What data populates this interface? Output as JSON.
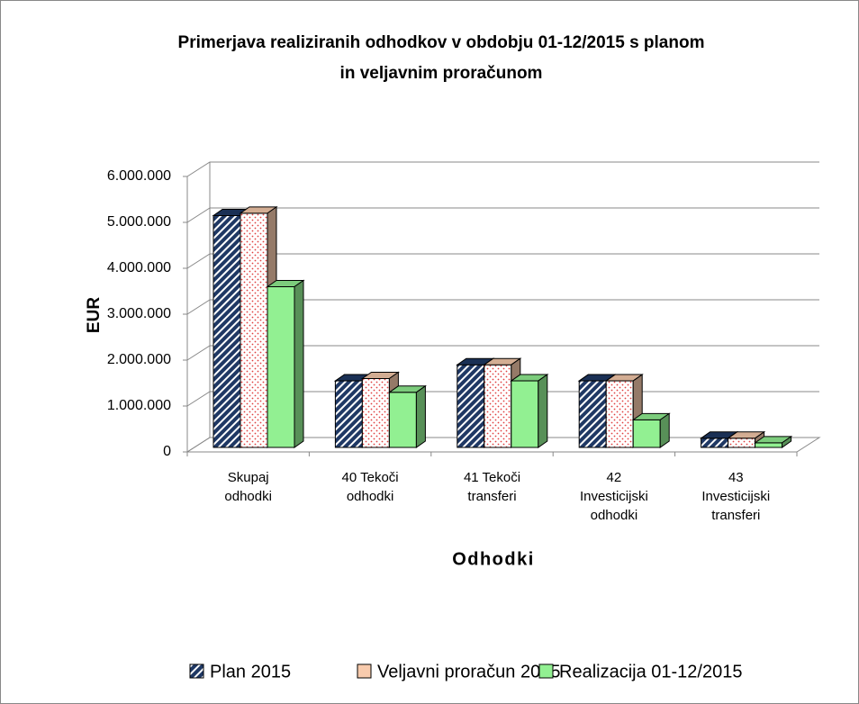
{
  "chart_data": {
    "type": "bar3d",
    "title": [
      "Primerjava realiziranih odhodkov v obdobju 01-12/2015 s planom",
      "in veljavnim proračunom"
    ],
    "xlabel": "Odhodki",
    "ylabel": "EUR",
    "categories": [
      "Skupaj odhodki",
      "40 Tekoči odhodki",
      "41 Tekoči transferi",
      "42 Investicijski odhodki",
      "43 Investicijski transferi"
    ],
    "series": [
      {
        "name": "Plan 2015",
        "color": "#1f3864",
        "values": [
          5050000,
          1450000,
          1800000,
          1450000,
          200000
        ]
      },
      {
        "name": "Veljavni proračun 2015",
        "color": "#f8cbad",
        "values": [
          5100000,
          1500000,
          1800000,
          1450000,
          200000
        ]
      },
      {
        "name": "Realizacija 01-12/2015",
        "color": "#92f092",
        "values": [
          3500000,
          1200000,
          1450000,
          600000,
          100000
        ]
      }
    ],
    "ylim": [
      0,
      6000000
    ],
    "yticks": [
      0,
      {
        "value": 1000000,
        "label": "1.000.000"
      },
      {
        "value": 2000000,
        "label": "2.000.000"
      },
      {
        "value": 3000000,
        "label": "3.000.000"
      },
      {
        "value": 4000000,
        "label": "4.000.000"
      },
      {
        "value": 5000000,
        "label": "5.000.000"
      },
      {
        "value": 6000000,
        "label": "6.000.000"
      }
    ],
    "grid": true,
    "legend": "bottom"
  }
}
